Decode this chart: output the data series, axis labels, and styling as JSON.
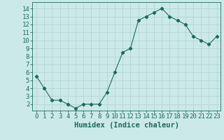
{
  "x": [
    0,
    1,
    2,
    3,
    4,
    5,
    6,
    7,
    8,
    9,
    10,
    11,
    12,
    13,
    14,
    15,
    16,
    17,
    18,
    19,
    20,
    21,
    22,
    23
  ],
  "y": [
    5.5,
    4.0,
    2.5,
    2.5,
    2.0,
    1.5,
    2.0,
    2.0,
    2.0,
    3.5,
    6.0,
    8.5,
    9.0,
    12.5,
    13.0,
    13.5,
    14.0,
    13.0,
    12.5,
    12.0,
    10.5,
    10.0,
    9.5,
    10.5
  ],
  "xlim": [
    -0.5,
    23.5
  ],
  "ylim": [
    1.2,
    14.8
  ],
  "yticks": [
    2,
    3,
    4,
    5,
    6,
    7,
    8,
    9,
    10,
    11,
    12,
    13,
    14
  ],
  "xticks": [
    0,
    1,
    2,
    3,
    4,
    5,
    6,
    7,
    8,
    9,
    10,
    11,
    12,
    13,
    14,
    15,
    16,
    17,
    18,
    19,
    20,
    21,
    22,
    23
  ],
  "xlabel": "Humidex (Indice chaleur)",
  "line_color": "#1a6b5a",
  "marker": "D",
  "marker_size": 2.2,
  "bg_color": "#cce9e9",
  "grid_color": "#b5d4d4",
  "tick_label_color": "#1a6b5a",
  "xlabel_color": "#1a6b5a",
  "xlabel_fontsize": 7.5,
  "tick_fontsize": 6.5
}
